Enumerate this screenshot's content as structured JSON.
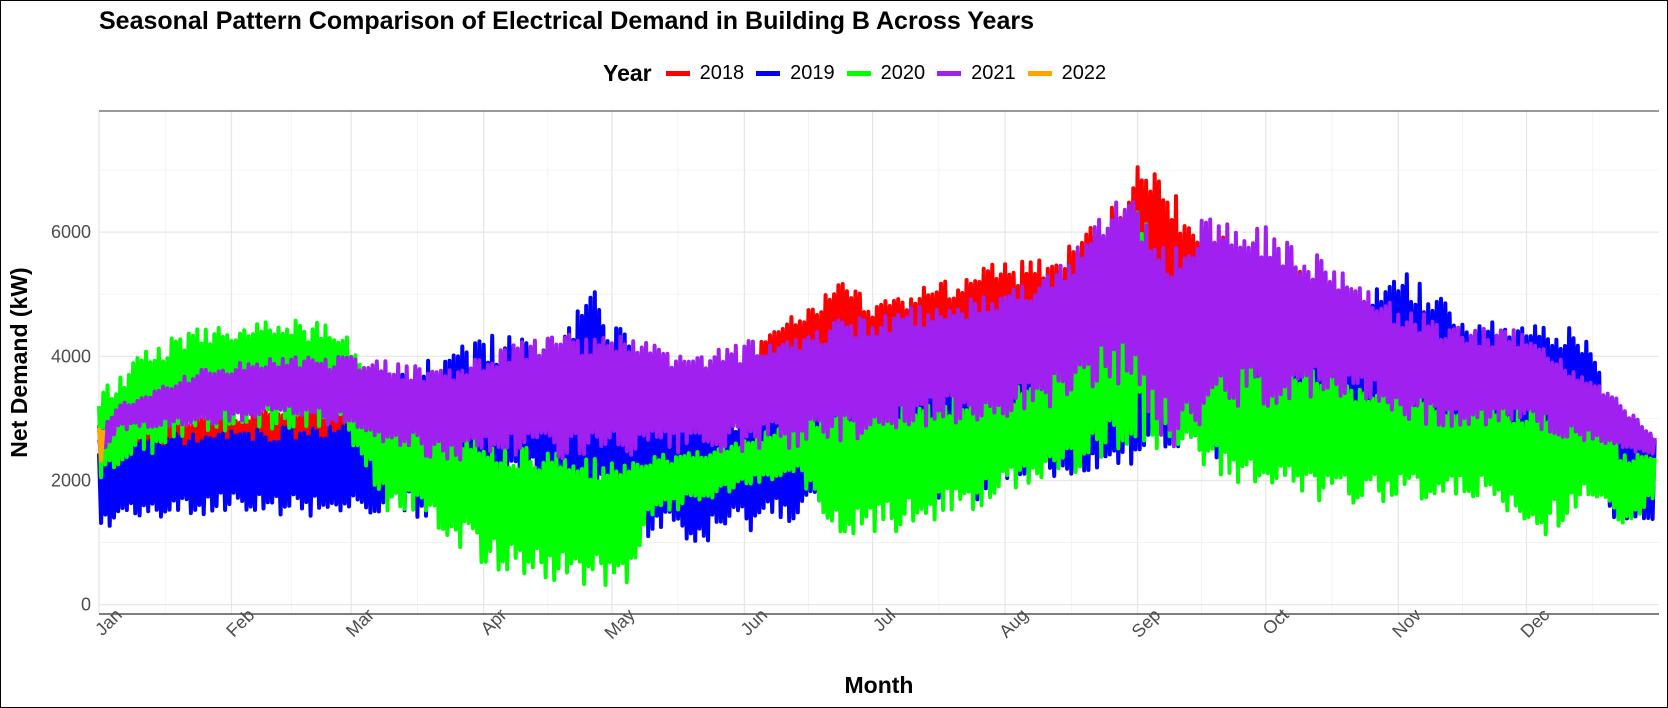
{
  "chart_data": {
    "type": "line",
    "title": "Seasonal Pattern Comparison of Electrical Demand in Building B Across Years",
    "xlabel": "Month",
    "ylabel": "Net Demand (kW)",
    "legend_title": "Year",
    "legend_position": "top",
    "grid": true,
    "x_categories": [
      "Jan",
      "Feb",
      "Mar",
      "Apr",
      "May",
      "Jun",
      "Jul",
      "Aug",
      "Sep",
      "Oct",
      "Nov",
      "Dec"
    ],
    "y_ticks": [
      0,
      2000,
      4000,
      6000
    ],
    "y_tick_labels": [
      "0",
      "2000",
      "4000",
      "6000"
    ],
    "ylim": [
      -150,
      7950
    ],
    "x_day_range": [
      1,
      366
    ],
    "colors": {
      "2018": "#ff0000",
      "2019": "#0000ff",
      "2020": "#00ff00",
      "2021": "#a020f0",
      "2022": "#ffa500"
    },
    "series": [
      {
        "name": "2018",
        "color": "#ff0000",
        "x_unit": "day_of_year",
        "envelope": [
          {
            "x": 1,
            "low": 2100,
            "high": 2900
          },
          {
            "x": 5,
            "low": 2100,
            "high": 2900
          },
          {
            "x": 152,
            "low": 2800,
            "high": 3900
          },
          {
            "x": 158,
            "low": 2900,
            "high": 4400
          },
          {
            "x": 166,
            "low": 3100,
            "high": 4800
          },
          {
            "x": 175,
            "low": 3300,
            "high": 5200
          },
          {
            "x": 182,
            "low": 3400,
            "high": 4900
          },
          {
            "x": 198,
            "low": 3400,
            "high": 5200
          },
          {
            "x": 210,
            "low": 3500,
            "high": 5500
          },
          {
            "x": 225,
            "low": 3500,
            "high": 5600
          },
          {
            "x": 238,
            "low": 3700,
            "high": 6500
          },
          {
            "x": 245,
            "low": 3800,
            "high": 7500
          },
          {
            "x": 255,
            "low": 3300,
            "high": 6400
          },
          {
            "x": 268,
            "low": 3000,
            "high": 5800
          },
          {
            "x": 280,
            "low": 3000,
            "high": 5500
          },
          {
            "x": 300,
            "low": 2900,
            "high": 4800
          },
          {
            "x": 320,
            "low": 2700,
            "high": 4500
          },
          {
            "x": 335,
            "low": 2500,
            "high": 4300
          },
          {
            "x": 345,
            "low": 2300,
            "high": 4000
          },
          {
            "x": 355,
            "low": 2200,
            "high": 3300
          },
          {
            "x": 365,
            "low": 2200,
            "high": 2700
          }
        ]
      },
      {
        "name": "2019",
        "color": "#0000ff",
        "x_unit": "day_of_year",
        "envelope": [
          {
            "x": 1,
            "low": 1200,
            "high": 2700
          },
          {
            "x": 30,
            "low": 1500,
            "high": 2800
          },
          {
            "x": 58,
            "low": 1400,
            "high": 3000
          },
          {
            "x": 75,
            "low": 1400,
            "high": 4000
          },
          {
            "x": 92,
            "low": 1600,
            "high": 4400
          },
          {
            "x": 105,
            "low": 1800,
            "high": 4300
          },
          {
            "x": 118,
            "low": 1200,
            "high": 5100
          },
          {
            "x": 128,
            "low": 1000,
            "high": 3900
          },
          {
            "x": 140,
            "low": 800,
            "high": 3000
          },
          {
            "x": 155,
            "low": 1200,
            "high": 3300
          },
          {
            "x": 170,
            "low": 1400,
            "high": 3500
          },
          {
            "x": 182,
            "low": 1500,
            "high": 4000
          },
          {
            "x": 198,
            "low": 1500,
            "high": 4300
          },
          {
            "x": 213,
            "low": 1800,
            "high": 4300
          },
          {
            "x": 228,
            "low": 2000,
            "high": 4000
          },
          {
            "x": 240,
            "low": 2200,
            "high": 4200
          },
          {
            "x": 258,
            "low": 2400,
            "high": 5600
          },
          {
            "x": 275,
            "low": 2200,
            "high": 4500
          },
          {
            "x": 290,
            "low": 2300,
            "high": 4300
          },
          {
            "x": 305,
            "low": 2500,
            "high": 5600
          },
          {
            "x": 320,
            "low": 2600,
            "high": 4600
          },
          {
            "x": 335,
            "low": 2500,
            "high": 4600
          },
          {
            "x": 350,
            "low": 2300,
            "high": 4400
          },
          {
            "x": 356,
            "low": 1300,
            "high": 2800
          },
          {
            "x": 365,
            "low": 1300,
            "high": 2800
          }
        ]
      },
      {
        "name": "2020",
        "color": "#00ff00",
        "x_unit": "day_of_year",
        "envelope": [
          {
            "x": 1,
            "low": 2000,
            "high": 3400
          },
          {
            "x": 10,
            "low": 2300,
            "high": 4000
          },
          {
            "x": 20,
            "low": 2700,
            "high": 4400
          },
          {
            "x": 30,
            "low": 2800,
            "high": 4600
          },
          {
            "x": 45,
            "low": 2800,
            "high": 4600
          },
          {
            "x": 58,
            "low": 2800,
            "high": 4500
          },
          {
            "x": 68,
            "low": 1500,
            "high": 3600
          },
          {
            "x": 80,
            "low": 1200,
            "high": 3000
          },
          {
            "x": 92,
            "low": 600,
            "high": 2700
          },
          {
            "x": 105,
            "low": 400,
            "high": 2500
          },
          {
            "x": 118,
            "low": 300,
            "high": 2400
          },
          {
            "x": 125,
            "low": 200,
            "high": 2300
          },
          {
            "x": 130,
            "low": 1400,
            "high": 2400
          },
          {
            "x": 150,
            "low": 1800,
            "high": 2600
          },
          {
            "x": 165,
            "low": 2100,
            "high": 3000
          },
          {
            "x": 172,
            "low": 1000,
            "high": 3200
          },
          {
            "x": 190,
            "low": 1200,
            "high": 3400
          },
          {
            "x": 205,
            "low": 1500,
            "high": 3400
          },
          {
            "x": 220,
            "low": 2000,
            "high": 3600
          },
          {
            "x": 235,
            "low": 2200,
            "high": 4800
          },
          {
            "x": 244,
            "low": 2600,
            "high": 6600
          },
          {
            "x": 255,
            "low": 2300,
            "high": 4600
          },
          {
            "x": 270,
            "low": 1900,
            "high": 4100
          },
          {
            "x": 290,
            "low": 1600,
            "high": 3700
          },
          {
            "x": 310,
            "low": 1700,
            "high": 3400
          },
          {
            "x": 325,
            "low": 1700,
            "high": 3300
          },
          {
            "x": 338,
            "low": 1000,
            "high": 3200
          },
          {
            "x": 350,
            "low": 1700,
            "high": 3200
          },
          {
            "x": 358,
            "low": 1100,
            "high": 2500
          },
          {
            "x": 365,
            "low": 1700,
            "high": 2500
          }
        ]
      },
      {
        "name": "2021",
        "color": "#a020f0",
        "x_unit": "day_of_year",
        "envelope": [
          {
            "x": 1,
            "low": 2300,
            "high": 2700
          },
          {
            "x": 5,
            "low": 2800,
            "high": 3200
          },
          {
            "x": 25,
            "low": 2900,
            "high": 3800
          },
          {
            "x": 45,
            "low": 3000,
            "high": 4000
          },
          {
            "x": 60,
            "low": 2800,
            "high": 4000
          },
          {
            "x": 80,
            "low": 2300,
            "high": 3800
          },
          {
            "x": 100,
            "low": 2400,
            "high": 4300
          },
          {
            "x": 120,
            "low": 2300,
            "high": 4400
          },
          {
            "x": 140,
            "low": 2400,
            "high": 4000
          },
          {
            "x": 160,
            "low": 2500,
            "high": 4400
          },
          {
            "x": 182,
            "low": 2700,
            "high": 4700
          },
          {
            "x": 200,
            "low": 2900,
            "high": 4900
          },
          {
            "x": 212,
            "low": 3000,
            "high": 5000
          },
          {
            "x": 230,
            "low": 3300,
            "high": 5800
          },
          {
            "x": 238,
            "low": 3500,
            "high": 6800
          },
          {
            "x": 244,
            "low": 3400,
            "high": 6500
          },
          {
            "x": 252,
            "low": 2300,
            "high": 5800
          },
          {
            "x": 262,
            "low": 3000,
            "high": 6500
          },
          {
            "x": 275,
            "low": 3200,
            "high": 6100
          },
          {
            "x": 290,
            "low": 3400,
            "high": 5500
          },
          {
            "x": 305,
            "low": 3000,
            "high": 4800
          },
          {
            "x": 320,
            "low": 2800,
            "high": 4500
          },
          {
            "x": 335,
            "low": 2800,
            "high": 4400
          },
          {
            "x": 355,
            "low": 2500,
            "high": 3400
          },
          {
            "x": 365,
            "low": 2400,
            "high": 2700
          }
        ]
      },
      {
        "name": "2022",
        "color": "#ffa500",
        "x_unit": "day_of_year",
        "envelope": [
          {
            "x": 1,
            "low": 2200,
            "high": 2900
          },
          {
            "x": 2,
            "low": 2200,
            "high": 2900
          }
        ]
      }
    ]
  }
}
